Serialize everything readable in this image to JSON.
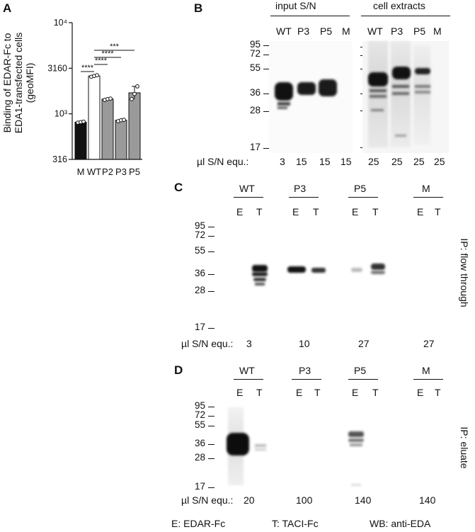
{
  "panels": {
    "A": {
      "letter": "A",
      "ylabel_line1": "Binding of EDAR-Fc to",
      "ylabel_line2": "EDA1-transfected cells",
      "ylabel_line3": "(geoMFI)",
      "yticks": [
        "10⁴",
        "3160",
        "10³",
        "316"
      ],
      "sig": [
        "****",
        "****",
        "****",
        "***"
      ]
    },
    "B": {
      "letter": "B",
      "header_input": "input S/N",
      "header_extracts": "cell extracts",
      "lanes": [
        "WT",
        "P3",
        "P5",
        "M",
        "WT",
        "P3",
        "P5",
        "M"
      ],
      "mw_markers": [
        "95",
        "72",
        "55",
        "36",
        "28",
        "17"
      ],
      "equ_label": "µl S/N equ.:",
      "equ_values": [
        "3",
        "15",
        "15",
        "15",
        "25",
        "25",
        "25",
        "25"
      ]
    },
    "C": {
      "letter": "C",
      "groups": [
        "WT",
        "P3",
        "P5",
        "M"
      ],
      "sub_lanes": [
        "E",
        "T"
      ],
      "mw_markers": [
        "95",
        "72",
        "55",
        "36",
        "28",
        "17"
      ],
      "side_label": "IP: flow through",
      "equ_label": "µl S/N equ.:",
      "equ_values": [
        "3",
        "10",
        "27",
        "27"
      ]
    },
    "D": {
      "letter": "D",
      "groups": [
        "WT",
        "P3",
        "P5",
        "M"
      ],
      "sub_lanes": [
        "E",
        "T"
      ],
      "mw_markers": [
        "95",
        "72",
        "55",
        "36",
        "28",
        "17"
      ],
      "side_label": "IP: eluate",
      "equ_label": "µl S/N equ.:",
      "equ_values": [
        "20",
        "100",
        "140",
        "140"
      ]
    }
  },
  "legend": {
    "e": "E: EDAR-Fc",
    "t": "T: TACI-Fc",
    "wb": "WB: anti-EDA"
  },
  "chart_data": {
    "type": "bar",
    "title": "",
    "ylabel": "Binding of EDAR-Fc to EDA1-transfected cells (geoMFI)",
    "yscale": "log",
    "ylim": [
      316,
      10000
    ],
    "yticks": [
      316,
      1000,
      3160,
      10000
    ],
    "ytick_labels": [
      "316",
      "10³",
      "3160",
      "10⁴"
    ],
    "categories": [
      "M",
      "WT",
      "P2",
      "P3",
      "P5"
    ],
    "values": [
      810,
      2600,
      1450,
      850,
      1700
    ],
    "points": [
      [
        800,
        810,
        820
      ],
      [
        2550,
        2600,
        2650
      ],
      [
        1420,
        1450,
        1470
      ],
      [
        830,
        850,
        860
      ],
      [
        1450,
        1650,
        2000
      ]
    ],
    "bar_colors": [
      "#111111",
      "#ffffff",
      "#9a9a9a",
      "#9a9a9a",
      "#9a9a9a"
    ],
    "comparisons": [
      {
        "from": "M",
        "to": "WT",
        "label": "****"
      },
      {
        "from": "WT",
        "to": "P2",
        "label": "****"
      },
      {
        "from": "WT",
        "to": "P3",
        "label": "****"
      },
      {
        "from": "WT",
        "to": "P5",
        "label": "***"
      }
    ]
  }
}
